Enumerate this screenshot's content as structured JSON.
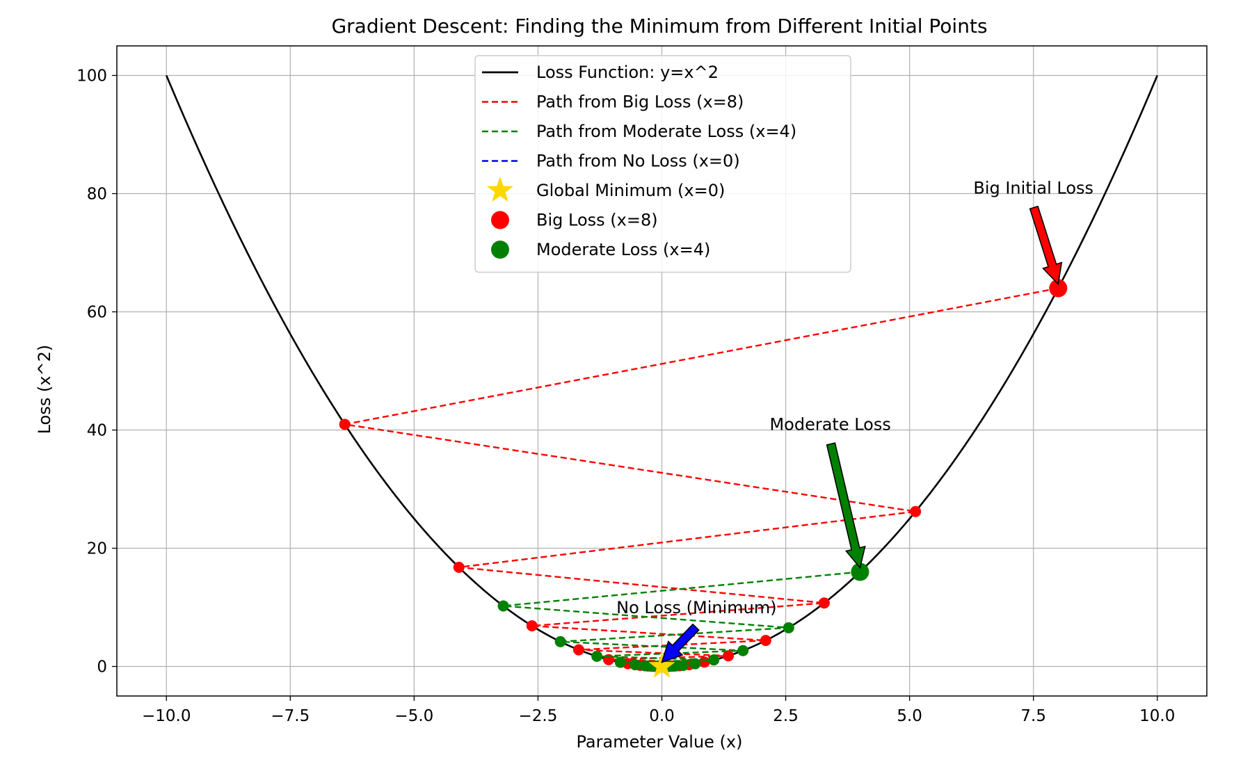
{
  "chart_data": {
    "type": "line",
    "title": "Gradient Descent: Finding the Minimum from Different Initial Points",
    "xlabel": "Parameter Value (x)",
    "ylabel": "Loss (x^2)",
    "xlim": [
      -11,
      11
    ],
    "ylim": [
      -5,
      105
    ],
    "x_ticks": [
      -10,
      -7.5,
      -5,
      -2.5,
      0,
      2.5,
      5,
      7.5,
      10
    ],
    "x_tick_labels": [
      "−10.0",
      "−7.5",
      "−5.0",
      "−2.5",
      "0.0",
      "2.5",
      "5.0",
      "7.5",
      "10.0"
    ],
    "y_ticks": [
      0,
      20,
      40,
      60,
      80,
      100
    ],
    "y_tick_labels": [
      "0",
      "20",
      "40",
      "60",
      "80",
      "100"
    ],
    "grid": true,
    "legend_position": "top-center",
    "loss_function": {
      "name": "Loss Function: y=x^2",
      "color": "#000000",
      "x_range": [
        -10,
        10
      ]
    },
    "series": [
      {
        "name": "Path from Big Loss (x=8)",
        "color": "#ff0000",
        "x": [
          8,
          -6.4,
          5.12,
          -4.096,
          3.277,
          -2.621,
          2.097,
          -1.678,
          1.342,
          -1.074,
          0.859,
          -0.687,
          0.55,
          -0.44,
          0.352,
          -0.281,
          0.225,
          -0.18,
          0.144,
          -0.115,
          0.092
        ],
        "y": [
          64,
          40.96,
          26.21,
          16.78,
          10.74,
          6.87,
          4.4,
          2.81,
          1.8,
          1.15,
          0.74,
          0.47,
          0.3,
          0.19,
          0.12,
          0.08,
          0.05,
          0.03,
          0.02,
          0.01,
          0.01
        ]
      },
      {
        "name": "Path from Moderate Loss (x=4)",
        "color": "#008000",
        "x": [
          4,
          -3.2,
          2.56,
          -2.048,
          1.638,
          -1.311,
          1.049,
          -0.839,
          0.671,
          -0.537,
          0.429,
          -0.344,
          0.275,
          -0.22,
          0.176,
          -0.141,
          0.113,
          -0.09,
          0.072,
          -0.058,
          0.046
        ],
        "y": [
          16,
          10.24,
          6.55,
          4.19,
          2.68,
          1.72,
          1.1,
          0.7,
          0.45,
          0.29,
          0.18,
          0.12,
          0.08,
          0.05,
          0.03,
          0.02,
          0.01,
          0.01,
          0.01,
          0.0,
          0.0
        ]
      },
      {
        "name": "Path from No Loss (x=0)",
        "color": "#0000ff",
        "x": [
          0,
          0
        ],
        "y": [
          0,
          0
        ]
      }
    ],
    "markers": [
      {
        "name": "Global Minimum (x=0)",
        "shape": "star",
        "color": "#ffd700",
        "x": 0,
        "y": 0
      },
      {
        "name": "Big Loss (x=8)",
        "shape": "circle",
        "color": "#ff0000",
        "x": 8,
        "y": 64
      },
      {
        "name": "Moderate Loss (x=4)",
        "shape": "circle",
        "color": "#008000",
        "x": 4,
        "y": 16
      }
    ],
    "legend_entries": [
      {
        "label": "Loss Function: y=x^2",
        "kind": "line-solid",
        "color": "#000000"
      },
      {
        "label": "Path from Big Loss (x=8)",
        "kind": "line-dashed",
        "color": "#ff0000"
      },
      {
        "label": "Path from Moderate Loss (x=4)",
        "kind": "line-dashed",
        "color": "#008000"
      },
      {
        "label": "Path from No Loss (x=0)",
        "kind": "line-dashed",
        "color": "#0000ff"
      },
      {
        "label": "Global Minimum (x=0)",
        "kind": "star",
        "color": "#ffd700"
      },
      {
        "label": "Big Loss (x=8)",
        "kind": "circle",
        "color": "#ff0000"
      },
      {
        "label": "Moderate Loss (x=4)",
        "kind": "circle",
        "color": "#008000"
      }
    ],
    "annotations": [
      {
        "text": "Big Initial Loss",
        "color": "#ff0000",
        "point": [
          8,
          64
        ],
        "text_pos": [
          7.5,
          80
        ]
      },
      {
        "text": "Moderate Loss",
        "color": "#008000",
        "point": [
          4,
          16
        ],
        "text_pos": [
          3.4,
          40
        ]
      },
      {
        "text": "No Loss (Minimum)",
        "color": "#0000ff",
        "point": [
          0,
          0
        ],
        "text_pos": [
          0.7,
          9
        ]
      }
    ]
  }
}
